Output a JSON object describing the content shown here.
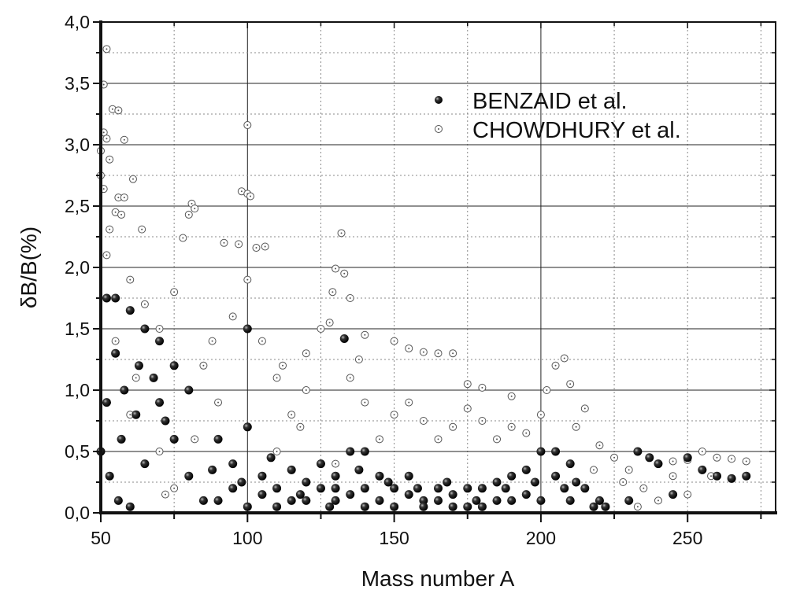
{
  "chart_data": {
    "type": "scatter",
    "xlabel": "Mass number A",
    "ylabel": "δB/B(%)",
    "xlim": [
      50,
      280
    ],
    "ylim": [
      0,
      4.0
    ],
    "xticks": [
      "50",
      "100",
      "150",
      "200",
      "250"
    ],
    "yticks": [
      "0,0",
      "0,5",
      "1,0",
      "1,5",
      "2,0",
      "2,5",
      "3,0",
      "3,5",
      "4,0"
    ],
    "grid": true,
    "legend_position": "top-right",
    "series": [
      {
        "name": "BENZAID et al.",
        "marker": "filled-circle",
        "color": "#111111",
        "points": [
          [
            55,
            1.75
          ],
          [
            52,
            1.75
          ],
          [
            60,
            1.65
          ],
          [
            65,
            1.5
          ],
          [
            70,
            1.4
          ],
          [
            75,
            1.2
          ],
          [
            80,
            1.0
          ],
          [
            55,
            1.3
          ],
          [
            58,
            1.0
          ],
          [
            62,
            0.8
          ],
          [
            52,
            0.9
          ],
          [
            50,
            0.5
          ],
          [
            53,
            0.3
          ],
          [
            56,
            0.1
          ],
          [
            60,
            0.05
          ],
          [
            65,
            0.4
          ],
          [
            70,
            0.9
          ],
          [
            75,
            0.6
          ],
          [
            80,
            0.3
          ],
          [
            85,
            0.1
          ],
          [
            90,
            0.6
          ],
          [
            95,
            0.4
          ],
          [
            100,
            0.7
          ],
          [
            100,
            1.5
          ],
          [
            105,
            0.3
          ],
          [
            110,
            0.2
          ],
          [
            115,
            0.35
          ],
          [
            120,
            0.25
          ],
          [
            125,
            0.4
          ],
          [
            130,
            0.3
          ],
          [
            133,
            1.42
          ],
          [
            135,
            0.5
          ],
          [
            140,
            0.5
          ],
          [
            145,
            0.3
          ],
          [
            150,
            0.2
          ],
          [
            155,
            0.15
          ],
          [
            160,
            0.1
          ],
          [
            165,
            0.2
          ],
          [
            170,
            0.15
          ],
          [
            175,
            0.2
          ],
          [
            180,
            0.2
          ],
          [
            185,
            0.25
          ],
          [
            190,
            0.3
          ],
          [
            195,
            0.35
          ],
          [
            200,
            0.5
          ],
          [
            205,
            0.5
          ],
          [
            210,
            0.4
          ],
          [
            215,
            0.2
          ],
          [
            220,
            0.1
          ],
          [
            222,
            0.05
          ],
          [
            233,
            0.5
          ],
          [
            237,
            0.45
          ],
          [
            240,
            0.4
          ],
          [
            250,
            0.45
          ],
          [
            255,
            0.35
          ],
          [
            260,
            0.3
          ],
          [
            265,
            0.28
          ],
          [
            270,
            0.3
          ],
          [
            245,
            0.15
          ],
          [
            230,
            0.1
          ],
          [
            90,
            0.1
          ],
          [
            100,
            0.05
          ],
          [
            110,
            0.05
          ],
          [
            120,
            0.1
          ],
          [
            130,
            0.1
          ],
          [
            140,
            0.05
          ],
          [
            150,
            0.05
          ],
          [
            160,
            0.05
          ],
          [
            170,
            0.05
          ],
          [
            180,
            0.05
          ],
          [
            190,
            0.1
          ],
          [
            200,
            0.1
          ],
          [
            210,
            0.1
          ],
          [
            95,
            0.2
          ],
          [
            105,
            0.15
          ],
          [
            115,
            0.1
          ],
          [
            125,
            0.2
          ],
          [
            135,
            0.15
          ],
          [
            145,
            0.1
          ],
          [
            155,
            0.3
          ],
          [
            165,
            0.1
          ],
          [
            175,
            0.05
          ],
          [
            185,
            0.1
          ],
          [
            195,
            0.15
          ],
          [
            205,
            0.3
          ],
          [
            212,
            0.25
          ],
          [
            140,
            0.2
          ],
          [
            130,
            0.2
          ],
          [
            68,
            1.1
          ],
          [
            72,
            0.75
          ],
          [
            63,
            1.2
          ],
          [
            57,
            0.6
          ],
          [
            88,
            0.35
          ],
          [
            98,
            0.25
          ],
          [
            108,
            0.45
          ],
          [
            118,
            0.15
          ],
          [
            128,
            0.05
          ],
          [
            138,
            0.35
          ],
          [
            148,
            0.25
          ],
          [
            158,
            0.2
          ],
          [
            168,
            0.25
          ],
          [
            178,
            0.1
          ],
          [
            188,
            0.2
          ],
          [
            198,
            0.25
          ],
          [
            208,
            0.2
          ],
          [
            218,
            0.05
          ]
        ]
      },
      {
        "name": "CHOWDHURY et al.",
        "marker": "open-circle",
        "color": "#555555",
        "points": [
          [
            52,
            3.78
          ],
          [
            51,
            3.49
          ],
          [
            50,
            2.95
          ],
          [
            51,
            3.1
          ],
          [
            52,
            3.05
          ],
          [
            54,
            3.29
          ],
          [
            56,
            3.28
          ],
          [
            58,
            3.04
          ],
          [
            53,
            2.88
          ],
          [
            50,
            2.75
          ],
          [
            51,
            2.64
          ],
          [
            61,
            2.72
          ],
          [
            56,
            2.57
          ],
          [
            58,
            2.57
          ],
          [
            55,
            2.45
          ],
          [
            57,
            2.43
          ],
          [
            64,
            2.31
          ],
          [
            53,
            2.31
          ],
          [
            100,
            3.16
          ],
          [
            98,
            2.62
          ],
          [
            100,
            2.6
          ],
          [
            101,
            2.58
          ],
          [
            81,
            2.52
          ],
          [
            82,
            2.48
          ],
          [
            80,
            2.43
          ],
          [
            78,
            2.24
          ],
          [
            92,
            2.2
          ],
          [
            97,
            2.19
          ],
          [
            103,
            2.16
          ],
          [
            106,
            2.17
          ],
          [
            132,
            2.28
          ],
          [
            130,
            1.99
          ],
          [
            133,
            1.95
          ],
          [
            129,
            1.8
          ],
          [
            135,
            1.75
          ],
          [
            140,
            1.45
          ],
          [
            150,
            1.4
          ],
          [
            160,
            1.31
          ],
          [
            165,
            1.3
          ],
          [
            170,
            1.3
          ],
          [
            155,
            1.34
          ],
          [
            175,
            1.05
          ],
          [
            180,
            1.02
          ],
          [
            190,
            0.95
          ],
          [
            205,
            1.2
          ],
          [
            208,
            1.26
          ],
          [
            210,
            1.05
          ],
          [
            215,
            0.85
          ],
          [
            220,
            0.55
          ],
          [
            225,
            0.45
          ],
          [
            230,
            0.35
          ],
          [
            235,
            0.2
          ],
          [
            240,
            0.4
          ],
          [
            245,
            0.42
          ],
          [
            250,
            0.43
          ],
          [
            255,
            0.5
          ],
          [
            260,
            0.45
          ],
          [
            265,
            0.44
          ],
          [
            270,
            0.42
          ],
          [
            233,
            0.05
          ],
          [
            240,
            0.1
          ],
          [
            250,
            0.15
          ],
          [
            110,
            1.1
          ],
          [
            120,
            1.0
          ],
          [
            125,
            1.5
          ],
          [
            115,
            0.8
          ],
          [
            140,
            0.9
          ],
          [
            150,
            0.8
          ],
          [
            160,
            0.75
          ],
          [
            170,
            0.7
          ],
          [
            180,
            0.75
          ],
          [
            190,
            0.7
          ],
          [
            200,
            0.8
          ],
          [
            145,
            0.6
          ],
          [
            130,
            0.4
          ],
          [
            110,
            0.5
          ],
          [
            90,
            0.9
          ],
          [
            85,
            1.2
          ],
          [
            70,
            1.5
          ],
          [
            65,
            1.7
          ],
          [
            60,
            1.9
          ],
          [
            75,
            1.8
          ],
          [
            95,
            1.6
          ],
          [
            105,
            1.4
          ],
          [
            120,
            1.3
          ],
          [
            70,
            0.5
          ],
          [
            75,
            0.2
          ],
          [
            72,
            0.15
          ],
          [
            60,
            0.8
          ],
          [
            55,
            1.4
          ],
          [
            52,
            2.1
          ],
          [
            100,
            1.9
          ],
          [
            88,
            1.4
          ],
          [
            112,
            1.2
          ],
          [
            135,
            1.1
          ],
          [
            155,
            0.9
          ],
          [
            165,
            0.6
          ],
          [
            175,
            0.85
          ],
          [
            185,
            0.6
          ],
          [
            195,
            0.65
          ],
          [
            202,
            1.0
          ],
          [
            212,
            0.7
          ],
          [
            218,
            0.35
          ],
          [
            228,
            0.25
          ],
          [
            245,
            0.3
          ],
          [
            258,
            0.3
          ],
          [
            138,
            1.25
          ],
          [
            128,
            1.55
          ],
          [
            118,
            0.7
          ],
          [
            82,
            0.6
          ],
          [
            62,
            1.1
          ]
        ]
      }
    ]
  }
}
